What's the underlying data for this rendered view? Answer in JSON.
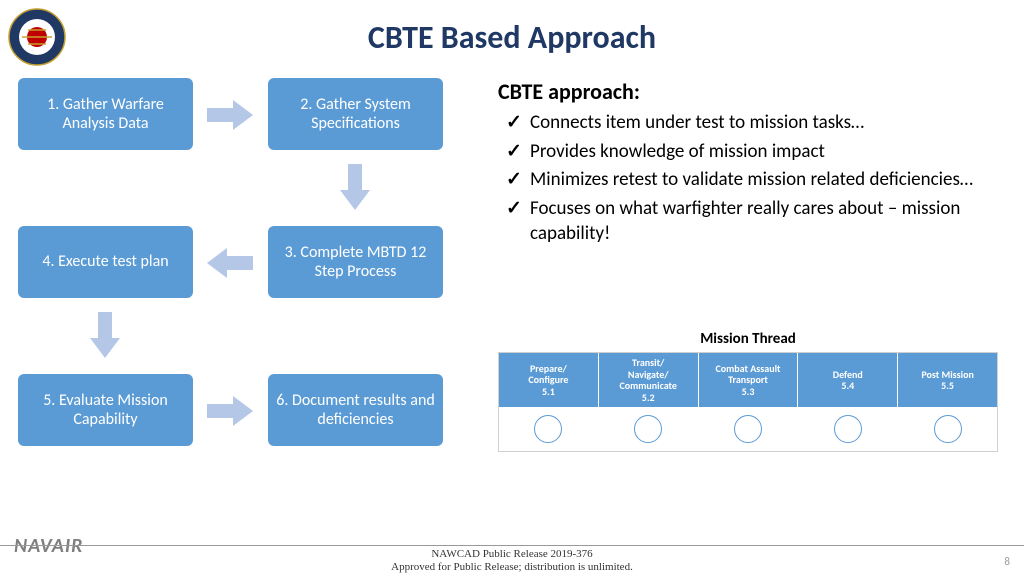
{
  "title": "CBTE Based Approach",
  "flow": {
    "box1": "1.  Gather Warfare Analysis Data",
    "box2": "2. Gather System Specifications",
    "box3": "3.  Complete MBTD 12 Step Process",
    "box4": "4.  Execute test plan",
    "box5": "5.  Evaluate Mission Capability",
    "box6": "6. Document results and deficiencies",
    "box_color": "#5b9bd5",
    "arrow_color": "#b4c7e7"
  },
  "approach": {
    "heading": "CBTE approach:",
    "items": [
      "Connects item under test to mission tasks…",
      "Provides knowledge of mission impact",
      "Minimizes retest to validate mission related deficiencies…",
      "Focuses on what warfighter really cares about – mission capability!"
    ]
  },
  "thread": {
    "title": "Mission Thread",
    "columns": [
      {
        "label": "Prepare/\nConfigure",
        "code": "5.1"
      },
      {
        "label": "Transit/\nNavigate/\nCommunicate",
        "code": "5.2"
      },
      {
        "label": "Combat Assault\nTransport",
        "code": "5.3"
      },
      {
        "label": "Defend",
        "code": "5.4"
      },
      {
        "label": "Post Mission",
        "code": "5.5"
      }
    ],
    "header_bg": "#5b9bd5",
    "circle_border": "#5b9bd5"
  },
  "footer": {
    "org": "NAVAIR",
    "release1": "NAWCAD Public Release 2019-376",
    "release2": "Approved for Public Release; distribution is unlimited.",
    "page": "8"
  }
}
